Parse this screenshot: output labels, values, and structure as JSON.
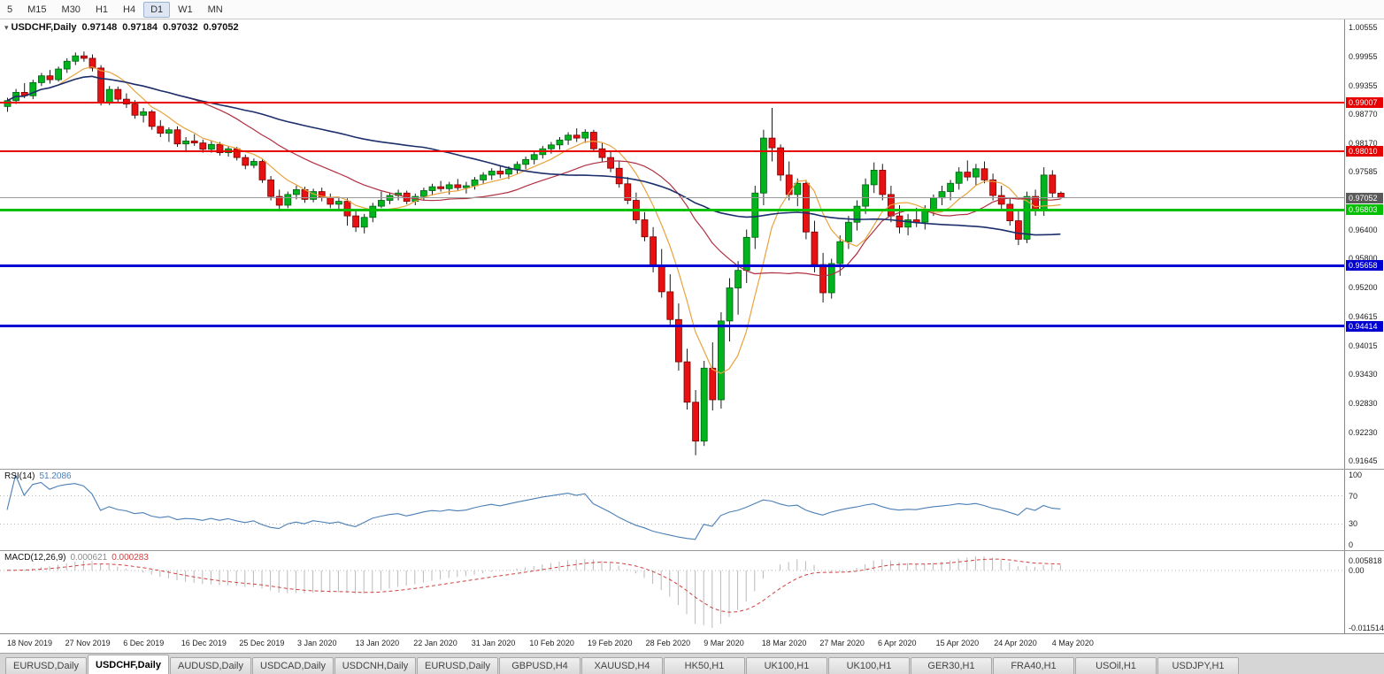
{
  "toolbar": {
    "timeframes": [
      "5",
      "M15",
      "M30",
      "H1",
      "H4",
      "D1",
      "W1",
      "MN"
    ],
    "active": "D1"
  },
  "chart_title": {
    "collapse_icon": "▾",
    "symbol": "USDCHF,Daily",
    "open": "0.97148",
    "high": "0.97184",
    "low": "0.97032",
    "close": "0.97052"
  },
  "price_axis": {
    "labels": [
      "1.00555",
      "0.99955",
      "0.99355",
      "0.98770",
      "0.98170",
      "0.97585",
      "0.96400",
      "0.95800",
      "0.95200",
      "0.94615",
      "0.94015",
      "0.93430",
      "0.92830",
      "0.92230",
      "0.91645"
    ],
    "current_price": "0.97052"
  },
  "rsi_panel": {
    "name": "RSI(14)",
    "value": "51.2086",
    "axis_labels": [
      100,
      70,
      30,
      0
    ]
  },
  "macd_panel": {
    "name": "MACD(12,26,9)",
    "main_value": "0.000621",
    "signal_value": "0.000283",
    "axis_top": "0.005818",
    "axis_zero": "0.00",
    "axis_bottom": "-0.011514"
  },
  "colors": {
    "bull": "#00b41e",
    "bull_stroke": "#006010",
    "bear": "#e81010",
    "bear_stroke": "#7a0000",
    "wick": "#1a1a1a",
    "ma_fast": "#e8a33d",
    "ma_mid": "#b03040",
    "ma_slow": "#1c2f6b",
    "rsi_line": "#4a7fb5",
    "macd_hist": "#b8b8b8",
    "macd_signal": "#d04040",
    "current_line": "#9a9a9a",
    "current_box": "#5a5a5a",
    "level_dotted": "#b8b8b8"
  },
  "tabs": {
    "active_index": 1,
    "items": [
      "EURUSD,Daily",
      "USDCHF,Daily",
      "AUDUSD,Daily",
      "USDCAD,Daily",
      "USDCNH,Daily",
      "EURUSD,Daily",
      "GBPUSD,H4",
      "XAUUSD,H4",
      "HK50,H1",
      "UK100,H1",
      "UK100,H1",
      "GER30,H1",
      "FRA40,H1",
      "USOil,H1",
      "USDJPY,H1"
    ]
  },
  "chart_data": {
    "type": "candlestick",
    "symbol": "USDCHF",
    "timeframe": "Daily",
    "last_quote": {
      "open": 0.97148,
      "high": 0.97184,
      "low": 0.97032,
      "close": 0.97052
    },
    "ylim": [
      0.91645,
      1.00555
    ],
    "x_tick_labels": [
      "18 Nov 2019",
      "27 Nov 2019",
      "6 Dec 2019",
      "16 Dec 2019",
      "25 Dec 2019",
      "3 Jan 2020",
      "13 Jan 2020",
      "22 Jan 2020",
      "31 Jan 2020",
      "10 Feb 2020",
      "19 Feb 2020",
      "28 Feb 2020",
      "9 Mar 2020",
      "18 Mar 2020",
      "27 Mar 2020",
      "6 Apr 2020",
      "15 Apr 2020",
      "24 Apr 2020",
      "4 May 2020"
    ],
    "horizontal_lines": [
      {
        "price": 0.99007,
        "label": "0.99007",
        "color": "#e60000",
        "width": 2
      },
      {
        "price": 0.9801,
        "label": "0.98010",
        "color": "#e60000",
        "width": 2
      },
      {
        "price": 0.96803,
        "label": "0.96803",
        "color": "#00c000",
        "width": 3
      },
      {
        "price": 0.95658,
        "label": "0.95658",
        "color": "#0000d0",
        "width": 3
      },
      {
        "price": 0.94414,
        "label": "0.94414",
        "color": "#0000d0",
        "width": 3
      }
    ],
    "overlays": [
      {
        "name": "ma-fast",
        "period": 7,
        "color_key": "ma_fast"
      },
      {
        "name": "ma-mid",
        "period": 20,
        "color_key": "ma_mid"
      },
      {
        "name": "ma-slow",
        "period": 50,
        "color_key": "ma_slow"
      }
    ],
    "indicators": {
      "rsi": {
        "period": 14,
        "current": 51.2086
      },
      "macd": {
        "fast": 12,
        "slow": 26,
        "signal": 9,
        "current_main": 0.000621,
        "current_signal": 0.000283
      }
    },
    "bars": [
      [
        0.9893,
        0.9911,
        0.9882,
        0.9905
      ],
      [
        0.9905,
        0.9929,
        0.9898,
        0.9922
      ],
      [
        0.9922,
        0.9941,
        0.991,
        0.9915
      ],
      [
        0.9915,
        0.9948,
        0.9908,
        0.9942
      ],
      [
        0.9942,
        0.9962,
        0.9935,
        0.9956
      ],
      [
        0.9956,
        0.9968,
        0.994,
        0.9948
      ],
      [
        0.9948,
        0.9975,
        0.9944,
        0.997
      ],
      [
        0.997,
        0.9992,
        0.9962,
        0.9986
      ],
      [
        0.9986,
        1.0004,
        0.9978,
        0.9997
      ],
      [
        0.9997,
        1.0006,
        0.9985,
        0.9992
      ],
      [
        0.9992,
        1.0,
        0.9965,
        0.9972
      ],
      [
        0.9972,
        0.9978,
        0.9895,
        0.9902
      ],
      [
        0.9902,
        0.9935,
        0.9896,
        0.9928
      ],
      [
        0.9928,
        0.9934,
        0.99,
        0.9908
      ],
      [
        0.9908,
        0.992,
        0.989,
        0.9898
      ],
      [
        0.9898,
        0.9906,
        0.9868,
        0.9875
      ],
      [
        0.9875,
        0.989,
        0.986,
        0.9882
      ],
      [
        0.9882,
        0.9886,
        0.9845,
        0.9852
      ],
      [
        0.9852,
        0.9865,
        0.983,
        0.9838
      ],
      [
        0.9838,
        0.985,
        0.982,
        0.9845
      ],
      [
        0.9845,
        0.9852,
        0.981,
        0.9816
      ],
      [
        0.9816,
        0.983,
        0.9802,
        0.9822
      ],
      [
        0.9822,
        0.9836,
        0.9812,
        0.9818
      ],
      [
        0.9818,
        0.9825,
        0.9798,
        0.9805
      ],
      [
        0.9805,
        0.9822,
        0.9798,
        0.9815
      ],
      [
        0.9815,
        0.982,
        0.9792,
        0.9798
      ],
      [
        0.9798,
        0.9812,
        0.979,
        0.9806
      ],
      [
        0.9806,
        0.981,
        0.9782,
        0.9788
      ],
      [
        0.9788,
        0.9794,
        0.9764,
        0.9772
      ],
      [
        0.9772,
        0.9786,
        0.9766,
        0.978
      ],
      [
        0.978,
        0.9784,
        0.9736,
        0.9742
      ],
      [
        0.9742,
        0.975,
        0.97,
        0.9708
      ],
      [
        0.9708,
        0.9722,
        0.9682,
        0.969
      ],
      [
        0.969,
        0.9718,
        0.9684,
        0.9712
      ],
      [
        0.9712,
        0.973,
        0.9702,
        0.9722
      ],
      [
        0.9722,
        0.9728,
        0.9695,
        0.9702
      ],
      [
        0.9702,
        0.9724,
        0.9696,
        0.9718
      ],
      [
        0.9718,
        0.9726,
        0.9698,
        0.9706
      ],
      [
        0.9706,
        0.9714,
        0.9684,
        0.9692
      ],
      [
        0.9692,
        0.9706,
        0.968,
        0.9698
      ],
      [
        0.9698,
        0.9704,
        0.9648,
        0.9668
      ],
      [
        0.9668,
        0.968,
        0.9635,
        0.9645
      ],
      [
        0.9645,
        0.9672,
        0.9632,
        0.9665
      ],
      [
        0.9665,
        0.9695,
        0.9655,
        0.9688
      ],
      [
        0.9688,
        0.9718,
        0.9684,
        0.97
      ],
      [
        0.97,
        0.9716,
        0.9692,
        0.971
      ],
      [
        0.971,
        0.9722,
        0.97,
        0.9715
      ],
      [
        0.9715,
        0.972,
        0.9692,
        0.9698
      ],
      [
        0.9698,
        0.9714,
        0.969,
        0.9708
      ],
      [
        0.9708,
        0.9726,
        0.97,
        0.972
      ],
      [
        0.972,
        0.9734,
        0.971,
        0.9728
      ],
      [
        0.9728,
        0.974,
        0.9718,
        0.9724
      ],
      [
        0.9724,
        0.9738,
        0.9712,
        0.9732
      ],
      [
        0.9732,
        0.9744,
        0.972,
        0.9726
      ],
      [
        0.9726,
        0.9738,
        0.9714,
        0.973
      ],
      [
        0.973,
        0.9748,
        0.9722,
        0.9742
      ],
      [
        0.9742,
        0.9758,
        0.9734,
        0.9752
      ],
      [
        0.9752,
        0.9766,
        0.9742,
        0.976
      ],
      [
        0.976,
        0.9772,
        0.9746,
        0.9754
      ],
      [
        0.9754,
        0.977,
        0.9744,
        0.9764
      ],
      [
        0.9764,
        0.978,
        0.9754,
        0.9774
      ],
      [
        0.9774,
        0.979,
        0.9764,
        0.9784
      ],
      [
        0.9784,
        0.98,
        0.9774,
        0.9794
      ],
      [
        0.9794,
        0.9812,
        0.9786,
        0.9806
      ],
      [
        0.9806,
        0.982,
        0.9796,
        0.9814
      ],
      [
        0.9814,
        0.983,
        0.9804,
        0.9824
      ],
      [
        0.9824,
        0.984,
        0.9814,
        0.9834
      ],
      [
        0.9834,
        0.9848,
        0.982,
        0.9828
      ],
      [
        0.9828,
        0.9846,
        0.9818,
        0.984
      ],
      [
        0.984,
        0.9845,
        0.98,
        0.9806
      ],
      [
        0.9806,
        0.9818,
        0.978,
        0.9788
      ],
      [
        0.9788,
        0.98,
        0.9758,
        0.9766
      ],
      [
        0.9766,
        0.978,
        0.9726,
        0.9734
      ],
      [
        0.9734,
        0.9748,
        0.9692,
        0.97
      ],
      [
        0.97,
        0.9716,
        0.9652,
        0.966
      ],
      [
        0.966,
        0.9676,
        0.9616,
        0.9625
      ],
      [
        0.9625,
        0.9645,
        0.9552,
        0.9565
      ],
      [
        0.9565,
        0.96,
        0.95,
        0.9512
      ],
      [
        0.9512,
        0.9548,
        0.944,
        0.9455
      ],
      [
        0.9455,
        0.9488,
        0.935,
        0.9368
      ],
      [
        0.9368,
        0.9395,
        0.927,
        0.9285
      ],
      [
        0.9285,
        0.931,
        0.9176,
        0.9205
      ],
      [
        0.9205,
        0.937,
        0.9195,
        0.9355
      ],
      [
        0.9355,
        0.9408,
        0.9268,
        0.929
      ],
      [
        0.929,
        0.947,
        0.9272,
        0.9452
      ],
      [
        0.9452,
        0.954,
        0.941,
        0.952
      ],
      [
        0.952,
        0.9575,
        0.9465,
        0.9556
      ],
      [
        0.9556,
        0.964,
        0.953,
        0.9624
      ],
      [
        0.9624,
        0.973,
        0.96,
        0.9715
      ],
      [
        0.9715,
        0.9845,
        0.969,
        0.9828
      ],
      [
        0.9828,
        0.989,
        0.978,
        0.9808
      ],
      [
        0.9808,
        0.9815,
        0.974,
        0.9752
      ],
      [
        0.9752,
        0.978,
        0.97,
        0.9712
      ],
      [
        0.9712,
        0.9745,
        0.9688,
        0.9735
      ],
      [
        0.9735,
        0.9742,
        0.962,
        0.9635
      ],
      [
        0.9635,
        0.9658,
        0.9552,
        0.9568
      ],
      [
        0.9568,
        0.9592,
        0.949,
        0.951
      ],
      [
        0.951,
        0.958,
        0.9498,
        0.957
      ],
      [
        0.957,
        0.9628,
        0.9545,
        0.9615
      ],
      [
        0.9615,
        0.9668,
        0.96,
        0.9655
      ],
      [
        0.9655,
        0.97,
        0.9638,
        0.9688
      ],
      [
        0.9688,
        0.9745,
        0.9672,
        0.9732
      ],
      [
        0.9732,
        0.9778,
        0.9715,
        0.9762
      ],
      [
        0.9762,
        0.9775,
        0.97,
        0.9712
      ],
      [
        0.9712,
        0.973,
        0.9655,
        0.9668
      ],
      [
        0.9668,
        0.969,
        0.9632,
        0.9645
      ],
      [
        0.9645,
        0.9672,
        0.9628,
        0.966
      ],
      [
        0.966,
        0.9685,
        0.9645,
        0.9655
      ],
      [
        0.9655,
        0.969,
        0.964,
        0.9682
      ],
      [
        0.9682,
        0.9712,
        0.9668,
        0.9705
      ],
      [
        0.9705,
        0.973,
        0.969,
        0.9718
      ],
      [
        0.9718,
        0.9742,
        0.97,
        0.9735
      ],
      [
        0.9735,
        0.9768,
        0.9722,
        0.9758
      ],
      [
        0.9758,
        0.9782,
        0.974,
        0.9748
      ],
      [
        0.9748,
        0.9775,
        0.973,
        0.9765
      ],
      [
        0.9765,
        0.978,
        0.9735,
        0.9742
      ],
      [
        0.9742,
        0.9755,
        0.97,
        0.971
      ],
      [
        0.971,
        0.973,
        0.968,
        0.9692
      ],
      [
        0.9692,
        0.9705,
        0.9648,
        0.9658
      ],
      [
        0.9658,
        0.968,
        0.9608,
        0.962
      ],
      [
        0.962,
        0.9718,
        0.9612,
        0.9708
      ],
      [
        0.9708,
        0.9722,
        0.9668,
        0.9678
      ],
      [
        0.9678,
        0.9768,
        0.9668,
        0.9752
      ],
      [
        0.9752,
        0.9762,
        0.9706,
        0.9715
      ],
      [
        0.97148,
        0.97184,
        0.97032,
        0.97052
      ]
    ]
  }
}
